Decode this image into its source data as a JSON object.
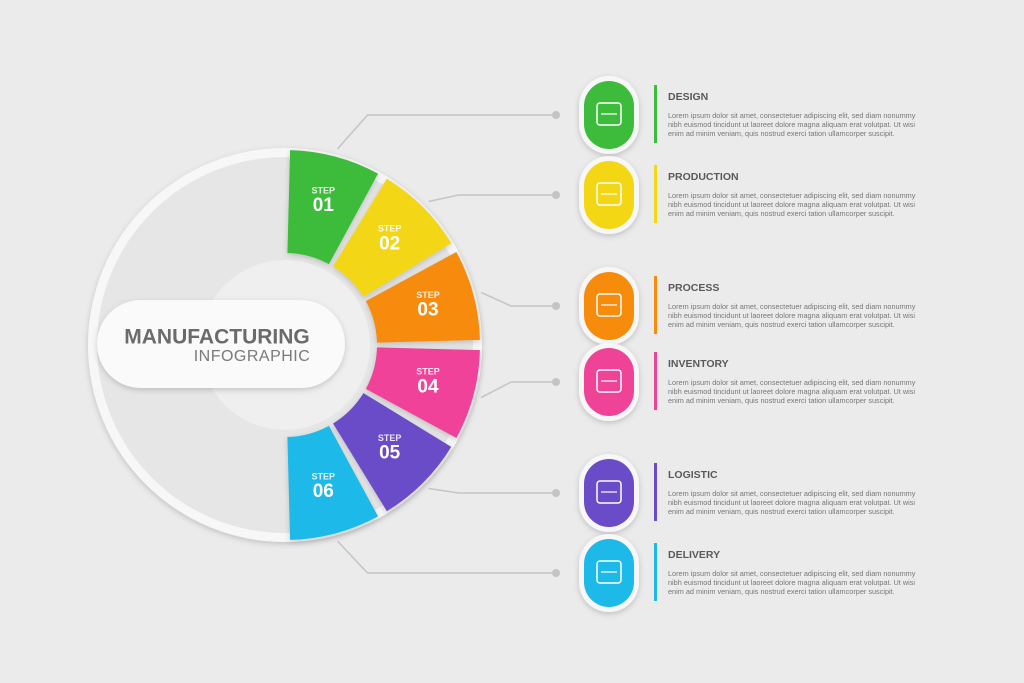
{
  "header": {
    "title": "MANUFACTURING",
    "subtitle": "INFOGRAPHIC"
  },
  "steps": [
    {
      "label": "STEP",
      "number": "01",
      "title": "DESIGN",
      "description": [
        "Lorem ipsum dolor sit amet, consectetuer adipiscing elit, sed diam nonummy",
        "nibh euismod tincidunt ut laoreet dolore magna aliquam erat volutpat. Ut wisi",
        "enim ad minim veniam, quis nostrud exerci tation ullamcorper suscipit."
      ]
    },
    {
      "label": "STEP",
      "number": "02",
      "title": "PRODUCTION",
      "description": [
        "Lorem ipsum dolor sit amet, consectetuer adipiscing elit, sed diam nonummy",
        "nibh euismod tincidunt ut laoreet dolore magna aliquam erat volutpat. Ut wisi",
        "enim ad minim veniam, quis nostrud exerci tation ullamcorper suscipit."
      ]
    },
    {
      "label": "STEP",
      "number": "03",
      "title": "PROCESS",
      "description": [
        "Lorem ipsum dolor sit amet, consectetuer adipiscing elit, sed diam nonummy",
        "nibh euismod tincidunt ut laoreet dolore magna aliquam erat volutpat. Ut wisi",
        "enim ad minim veniam, quis nostrud exerci tation ullamcorper suscipit."
      ]
    },
    {
      "label": "STEP",
      "number": "04",
      "title": "INVENTORY",
      "description": [
        "Lorem ipsum dolor sit amet, consectetuer adipiscing elit, sed diam nonummy",
        "nibh euismod tincidunt ut laoreet dolore magna aliquam erat volutpat. Ut wisi",
        "enim ad minim veniam, quis nostrud exerci tation ullamcorper suscipit."
      ]
    },
    {
      "label": "STEP",
      "number": "05",
      "title": "LOGISTIC",
      "description": [
        "Lorem ipsum dolor sit amet, consectetuer adipiscing elit, sed diam nonummy",
        "nibh euismod tincidunt ut laoreet dolore magna aliquam erat volutpat. Ut wisi",
        "enim ad minim veniam, quis nostrud exerci tation ullamcorper suscipit."
      ]
    },
    {
      "label": "STEP",
      "number": "06",
      "title": "DELIVERY",
      "description": [
        "Lorem ipsum dolor sit amet, consectetuer adipiscing elit, sed diam nonummy",
        "nibh euismod tincidunt ut laoreet dolore magna aliquam erat volutpat. Ut wisi",
        "enim ad minim veniam, quis nostrud exerci tation ullamcorper suscipit."
      ]
    }
  ]
}
